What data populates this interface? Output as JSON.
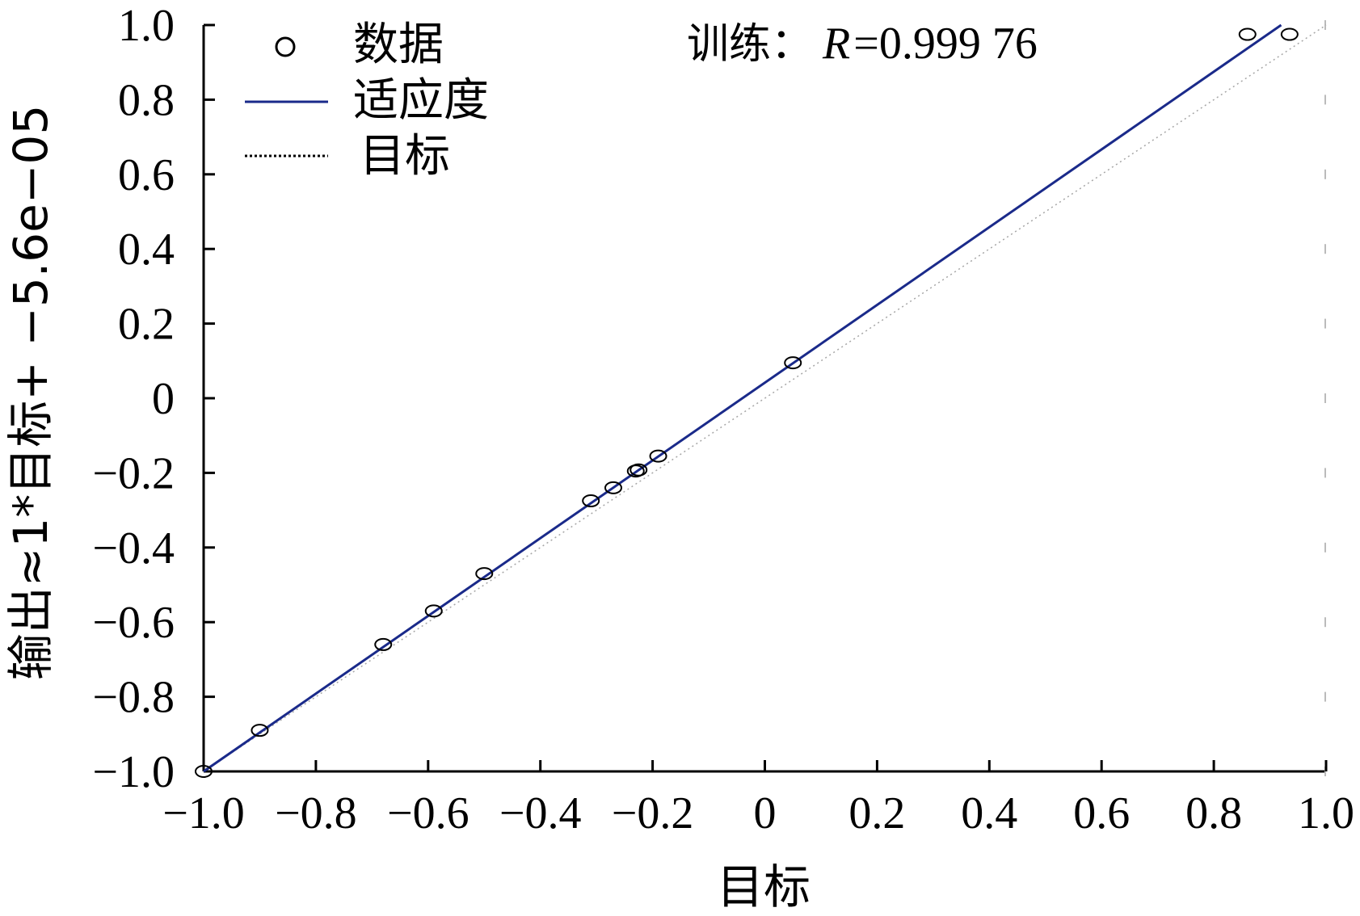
{
  "chart_data": {
    "type": "scatter",
    "xlabel": "目标",
    "ylabel": "输出≈1*目标+ −5.6e−05",
    "xlim": [
      -1.0,
      1.0
    ],
    "ylim": [
      -1.0,
      1.0
    ],
    "x_ticks": [
      "−1.0",
      "−0.8",
      "−0.6",
      "−0.4",
      "−0.2",
      "0",
      "0.2",
      "0.4",
      "0.6",
      "0.8",
      "1.0"
    ],
    "y_ticks": [
      "1.0",
      "0.8",
      "0.6",
      "0.4",
      "0.2",
      "0",
      "−0.2",
      "−0.4",
      "−0.6",
      "−0.8",
      "−1.0"
    ],
    "grid": false,
    "legend_position": "top-left",
    "legend": [
      {
        "label": "数据",
        "style": "circle-marker"
      },
      {
        "label": "适应度",
        "style": "solid-line"
      },
      {
        "label": "目标",
        "style": "dotted-line"
      }
    ],
    "annotation": {
      "prefix": "训练：",
      "var": "R",
      "value": "=0.999 76"
    },
    "colors": {
      "fit": "#1a2a8a",
      "data": "#000000",
      "target": "#000000"
    },
    "series": [
      {
        "name": "数据",
        "points": [
          {
            "x": -1.0,
            "y": -1.0
          },
          {
            "x": -0.9,
            "y": -0.89
          },
          {
            "x": -0.68,
            "y": -0.66
          },
          {
            "x": -0.59,
            "y": -0.57
          },
          {
            "x": -0.5,
            "y": -0.47
          },
          {
            "x": -0.31,
            "y": -0.275
          },
          {
            "x": -0.27,
            "y": -0.24
          },
          {
            "x": -0.23,
            "y": -0.195
          },
          {
            "x": -0.225,
            "y": -0.192
          },
          {
            "x": -0.19,
            "y": -0.155
          },
          {
            "x": 0.05,
            "y": 0.095
          },
          {
            "x": 0.86,
            "y": 0.975
          },
          {
            "x": 0.935,
            "y": 0.975
          }
        ]
      },
      {
        "name": "适应度",
        "line": [
          {
            "x": -1.0,
            "y": -1.0
          },
          {
            "x": 0.92,
            "y": 1.0
          }
        ]
      }
    ]
  }
}
